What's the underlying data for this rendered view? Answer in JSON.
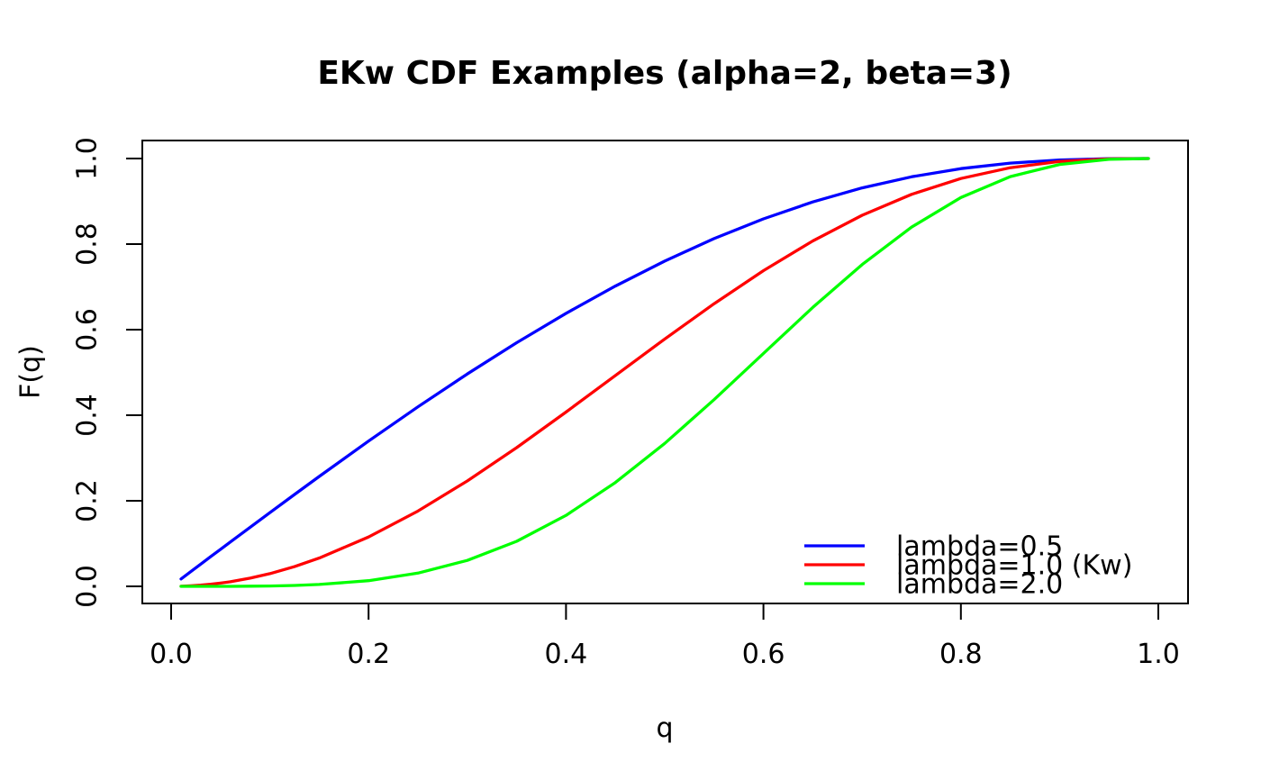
{
  "chart": {
    "title": "EKw CDF Examples (alpha=2, beta=3)",
    "xlabel": "q",
    "ylabel": "F(q)"
  },
  "chart_data": {
    "type": "line",
    "title": "EKw CDF Examples (alpha=2, beta=3)",
    "xlabel": "q",
    "ylabel": "F(q)",
    "xlim": [
      0.0,
      1.0
    ],
    "ylim": [
      0.0,
      1.0
    ],
    "grid": false,
    "legend_position": "bottomright",
    "x_ticks": [
      0.0,
      0.2,
      0.4,
      0.6,
      0.8,
      1.0
    ],
    "x_tick_labels": [
      "0.0",
      "0.2",
      "0.4",
      "0.6",
      "0.8",
      "1.0"
    ],
    "y_ticks": [
      0.0,
      0.2,
      0.4,
      0.6,
      0.8,
      1.0
    ],
    "y_tick_labels": [
      "0.0",
      "0.2",
      "0.4",
      "0.6",
      "0.8",
      "1.0"
    ],
    "x": [
      0.01,
      0.02,
      0.03,
      0.04,
      0.05,
      0.06,
      0.08,
      0.1,
      0.125,
      0.15,
      0.2,
      0.25,
      0.3,
      0.35,
      0.4,
      0.45,
      0.5,
      0.55,
      0.6,
      0.65,
      0.7,
      0.75,
      0.8,
      0.85,
      0.9,
      0.95,
      0.99
    ],
    "series": [
      {
        "name": "lambda=0.5",
        "color": "#0000FF",
        "values": [
          0.0173,
          0.0346,
          0.0519,
          0.0692,
          0.0865,
          0.1037,
          0.1381,
          0.1723,
          0.2148,
          0.2569,
          0.3395,
          0.4196,
          0.4964,
          0.5695,
          0.6382,
          0.702,
          0.7603,
          0.8128,
          0.859,
          0.8986,
          0.9313,
          0.9572,
          0.9764,
          0.9893,
          0.9966,
          0.9995,
          1.0
        ]
      },
      {
        "name": "lambda=1.0 (Kw)",
        "color": "#FF0000",
        "values": [
          0.0003,
          0.0012,
          0.0027,
          0.0048,
          0.0075,
          0.0108,
          0.0191,
          0.0297,
          0.0461,
          0.066,
          0.1153,
          0.176,
          0.2464,
          0.3243,
          0.4073,
          0.4928,
          0.5781,
          0.6607,
          0.7379,
          0.8074,
          0.8673,
          0.9163,
          0.9533,
          0.9786,
          0.9931,
          0.9991,
          1.0
        ]
      },
      {
        "name": "lambda=2.0",
        "color": "#00FF00",
        "values": [
          0.0,
          0.0,
          0.0,
          0.0,
          0.0001,
          0.0001,
          0.0004,
          0.0009,
          0.0021,
          0.0044,
          0.0133,
          0.031,
          0.0607,
          0.1052,
          0.1659,
          0.2428,
          0.3342,
          0.4365,
          0.5444,
          0.6519,
          0.7523,
          0.8395,
          0.9089,
          0.9577,
          0.9862,
          0.9981,
          1.0
        ]
      }
    ]
  },
  "legend": {
    "entries": [
      {
        "label": "lambda=0.5",
        "color": "#0000FF"
      },
      {
        "label": "lambda=1.0 (Kw)",
        "color": "#FF0000"
      },
      {
        "label": "lambda=2.0",
        "color": "#00FF00"
      }
    ]
  }
}
